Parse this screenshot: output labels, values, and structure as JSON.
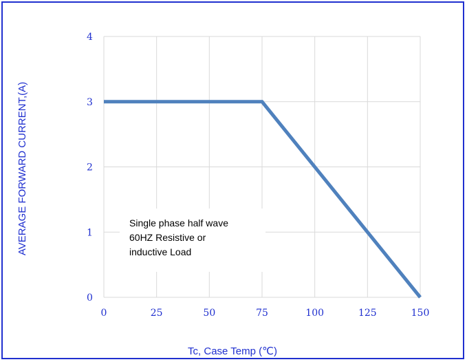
{
  "chart_data": {
    "type": "line",
    "x_ticks": [
      "0",
      "25",
      "50",
      "75",
      "100",
      "125",
      "150"
    ],
    "y_ticks": [
      "0",
      "1",
      "2",
      "3",
      "4"
    ],
    "xlim": [
      0,
      150
    ],
    "ylim": [
      0,
      4
    ],
    "grid": true,
    "xlabel": "Tc, Case Temp (℃)",
    "ylabel": "AVERAGE FORWARD CURRENT,(A)",
    "series": [
      {
        "x": [
          0,
          75,
          150
        ],
        "y": [
          3,
          3,
          0
        ]
      }
    ],
    "annotation": [
      "Single phase half wave",
      "60HZ Resistive or",
      "inductive Load"
    ],
    "colors": {
      "line": "#4f81bd",
      "text": "#1f2fcf",
      "grid": "#d9d9d9",
      "frame": "#1f2fcf"
    }
  }
}
